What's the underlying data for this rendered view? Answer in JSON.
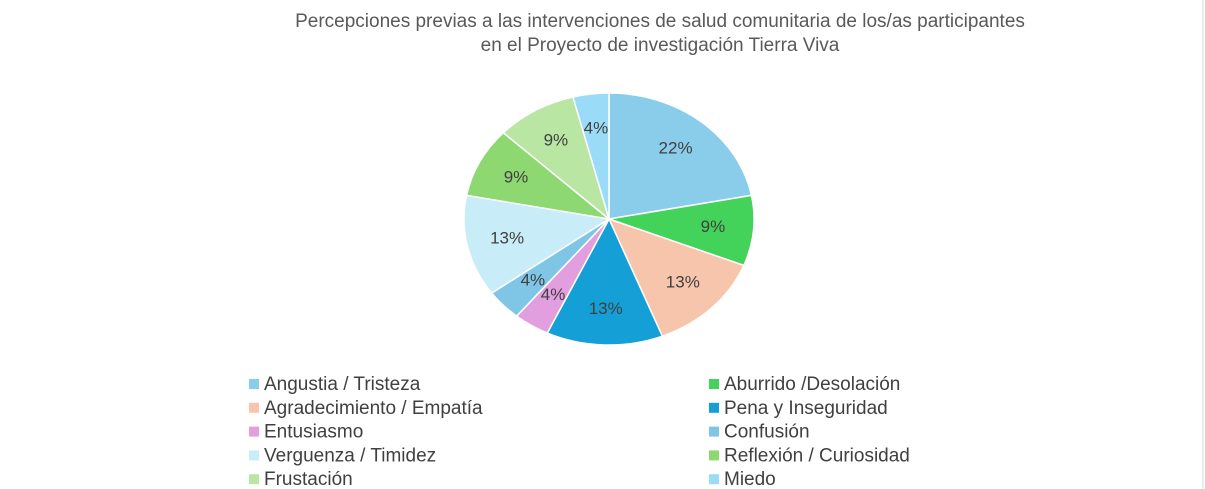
{
  "chart_data": {
    "type": "pie",
    "title": [
      "Percepciones previas a las intervenciones de salud comunitaria de los/as participantes",
      "en el Proyecto de investigación Tierra Viva"
    ],
    "categories": [
      "Angustia / Tristeza",
      "Aburrido /Desolación",
      "Agradecimiento / Empatía",
      "Pena  y Inseguridad",
      "Entusiasmo",
      "Confusión",
      "Verguenza / Timidez",
      "Reflexión / Curiosidad",
      "Frustación",
      "Miedo"
    ],
    "values": [
      22,
      9,
      13,
      13,
      4,
      4,
      13,
      9,
      9,
      4
    ],
    "value_labels": [
      "22%",
      "9%",
      "13%",
      "13%",
      "4%",
      "4%",
      "13%",
      "9%",
      "9%",
      "4%"
    ],
    "colors": [
      "#89cdea",
      "#44d35a",
      "#f6c5ab",
      "#149fd6",
      "#e29fe0",
      "#7fc6e6",
      "#c9ecf9",
      "#8ed872",
      "#b9e6a2",
      "#9adcf7"
    ],
    "legend": "bottom"
  }
}
